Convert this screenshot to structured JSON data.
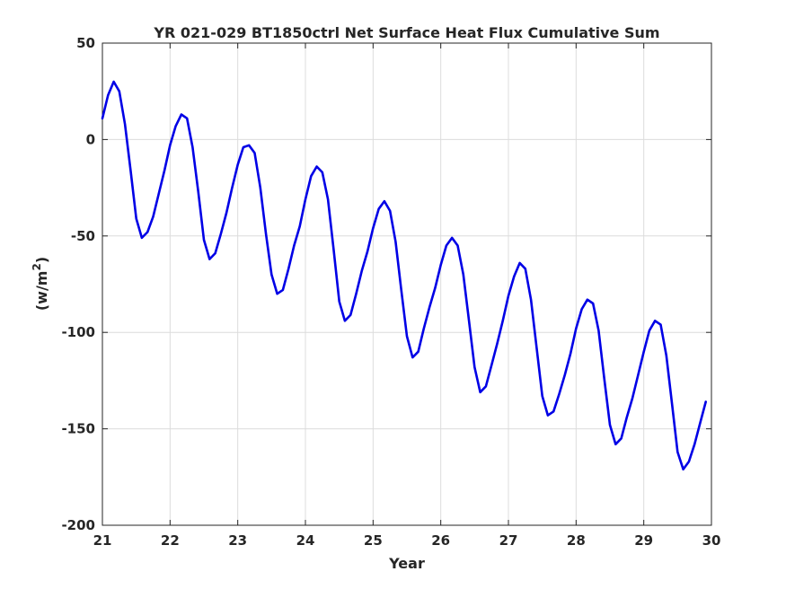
{
  "chart_data": {
    "type": "line",
    "title": "YR 021-029 BT1850ctrl Net Surface Heat Flux  Cumulative Sum",
    "xlabel": "Year",
    "ylabel_base": "(w/m",
    "ylabel_sup": "2",
    "ylabel_close": ")",
    "xlim": [
      21,
      30
    ],
    "ylim": [
      -200,
      50
    ],
    "xticks": [
      21,
      22,
      23,
      24,
      25,
      26,
      27,
      28,
      29,
      30
    ],
    "xtick_labels": [
      "21",
      "22",
      "23",
      "24",
      "25",
      "26",
      "27",
      "28",
      "29",
      "30"
    ],
    "yticks": [
      -200,
      -150,
      -100,
      -50,
      0,
      50
    ],
    "ytick_labels": [
      "-200",
      "-150",
      "-100",
      "-50",
      "0",
      "50"
    ],
    "grid": true,
    "line_color": "#0000e6",
    "series": [
      {
        "x": [
          21.0,
          21.083,
          21.167,
          21.25,
          21.333,
          21.417,
          21.5,
          21.583,
          21.667,
          21.75,
          21.833,
          21.917,
          22.0,
          22.083,
          22.167,
          22.25,
          22.333,
          22.417,
          22.5,
          22.583,
          22.667,
          22.75,
          22.833,
          22.917,
          23.0,
          23.083,
          23.167,
          23.25,
          23.333,
          23.417,
          23.5,
          23.583,
          23.667,
          23.75,
          23.833,
          23.917,
          24.0,
          24.083,
          24.167,
          24.25,
          24.333,
          24.417,
          24.5,
          24.583,
          24.667,
          24.75,
          24.833,
          24.917,
          25.0,
          25.083,
          25.167,
          25.25,
          25.333,
          25.417,
          25.5,
          25.583,
          25.667,
          25.75,
          25.833,
          25.917,
          26.0,
          26.083,
          26.167,
          26.25,
          26.333,
          26.417,
          26.5,
          26.583,
          26.667,
          26.75,
          26.833,
          26.917,
          27.0,
          27.083,
          27.167,
          27.25,
          27.333,
          27.417,
          27.5,
          27.583,
          27.667,
          27.75,
          27.833,
          27.917,
          28.0,
          28.083,
          28.167,
          28.25,
          28.333,
          28.417,
          28.5,
          28.583,
          28.667,
          28.75,
          28.833,
          28.917,
          29.0,
          29.083,
          29.167,
          29.25,
          29.333,
          29.417,
          29.5,
          29.583,
          29.667,
          29.75,
          29.833,
          29.917
        ],
        "y": [
          11,
          23,
          30,
          25,
          8,
          -16,
          -41,
          -51,
          -48,
          -40,
          -28,
          -16,
          -3,
          7,
          13,
          11,
          -4,
          -27,
          -52,
          -62,
          -59,
          -49,
          -38,
          -25,
          -13,
          -4,
          -3,
          -7,
          -25,
          -49,
          -70,
          -80,
          -78,
          -67,
          -55,
          -45,
          -31,
          -19,
          -14,
          -17,
          -31,
          -57,
          -84,
          -94,
          -91,
          -80,
          -68,
          -58,
          -46,
          -36,
          -32,
          -37,
          -53,
          -78,
          -102,
          -113,
          -110,
          -98,
          -87,
          -77,
          -65,
          -55,
          -51,
          -55,
          -70,
          -94,
          -118,
          -131,
          -128,
          -117,
          -106,
          -94,
          -81,
          -71,
          -64,
          -67,
          -83,
          -108,
          -133,
          -143,
          -141,
          -132,
          -122,
          -111,
          -98,
          -88,
          -83,
          -85,
          -99,
          -124,
          -148,
          -158,
          -155,
          -144,
          -134,
          -122,
          -110,
          -99,
          -94,
          -96,
          -112,
          -137,
          -162,
          -171,
          -167,
          -158,
          -147,
          -136
        ]
      }
    ]
  }
}
